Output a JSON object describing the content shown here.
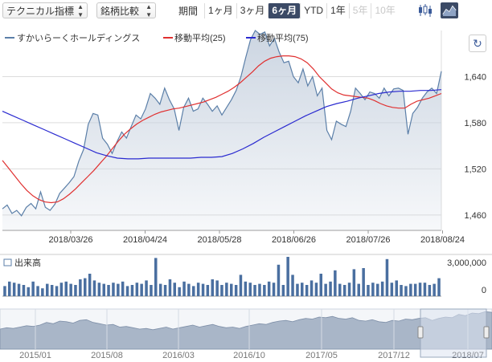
{
  "toolbar": {
    "indicator_label": "テクニカル指標",
    "compare_label": "銘柄比較",
    "period_label": "期間",
    "periods": [
      "1ヶ月",
      "3ヶ月",
      "6ヶ月",
      "YTD",
      "1年",
      "5年",
      "10年"
    ],
    "active_period": "6ヶ月",
    "disabled_periods": [
      "5年",
      "10年"
    ],
    "icons": [
      "candlestick-chart-icon",
      "area-chart-icon"
    ],
    "arrows": "⬆⬇"
  },
  "legend": {
    "company": "すかいらーくホールディングス",
    "ma25": "移動平均(25)",
    "ma75": "移動平均(75)"
  },
  "refresh_icon": "↻",
  "colors": {
    "price_line": "#5b7fa8",
    "price_fill": "#c9d3e0",
    "ma25": "#e03030",
    "ma75": "#2a2ad0",
    "volume": "#4a6fa0",
    "nav_fill": "#a9b6c8"
  },
  "chart_data": [
    {
      "type": "area",
      "title": "",
      "x_tick_labels": [
        "2018/03/26",
        "2018/04/24",
        "2018/05/28",
        "2018/06/26",
        "2018/07/26",
        "2018/08/24"
      ],
      "y_tick_labels": [
        "1,640",
        "1,580",
        "1,520",
        "1,460"
      ],
      "ylim": [
        1440,
        1700
      ],
      "grid": true,
      "series": [
        {
          "name": "すかいらーくホールディングス",
          "values": [
            1468,
            1473,
            1462,
            1466,
            1459,
            1470,
            1475,
            1468,
            1490,
            1470,
            1466,
            1474,
            1488,
            1495,
            1502,
            1510,
            1530,
            1545,
            1578,
            1592,
            1590,
            1560,
            1552,
            1540,
            1555,
            1568,
            1560,
            1575,
            1590,
            1585,
            1598,
            1618,
            1612,
            1604,
            1625,
            1610,
            1598,
            1570,
            1600,
            1612,
            1595,
            1598,
            1612,
            1604,
            1595,
            1602,
            1590,
            1600,
            1610,
            1622,
            1640,
            1665,
            1688,
            1700,
            1695,
            1698,
            1680,
            1690,
            1672,
            1658,
            1660,
            1640,
            1632,
            1650,
            1628,
            1640,
            1615,
            1625,
            1570,
            1558,
            1582,
            1578,
            1575,
            1595,
            1625,
            1618,
            1610,
            1620,
            1618,
            1612,
            1625,
            1615,
            1624,
            1625,
            1622,
            1565,
            1592,
            1600,
            1612,
            1620,
            1625,
            1618,
            1647
          ]
        },
        {
          "name": "移動平均(25)",
          "values": [
            1531,
            1521,
            1511,
            1501,
            1492,
            1485,
            1480,
            1477,
            1476,
            1477,
            1481,
            1487,
            1494,
            1502,
            1510,
            1518,
            1527,
            1536,
            1546,
            1556,
            1565,
            1572,
            1578,
            1583,
            1587,
            1591,
            1594,
            1596,
            1598,
            1599,
            1601,
            1603,
            1605,
            1607,
            1610,
            1613,
            1617,
            1621,
            1626,
            1632,
            1639,
            1646,
            1654,
            1660,
            1664,
            1666,
            1667,
            1667,
            1666,
            1663,
            1658,
            1650,
            1640,
            1632,
            1624,
            1619,
            1616,
            1615,
            1614,
            1613,
            1612,
            1609,
            1605,
            1602,
            1600,
            1599,
            1599,
            1604,
            1608,
            1610,
            1612,
            1615,
            1618
          ]
        },
        {
          "name": "移動平均(75)",
          "values": [
            1595,
            1589,
            1583,
            1577,
            1571,
            1565,
            1559,
            1553,
            1547,
            1541,
            1537,
            1534,
            1533,
            1533,
            1534,
            1534,
            1534,
            1534,
            1534,
            1535,
            1535,
            1536,
            1540,
            1546,
            1553,
            1561,
            1568,
            1575,
            1582,
            1589,
            1595,
            1601,
            1605,
            1608,
            1612,
            1615,
            1618,
            1620,
            1621,
            1621,
            1622,
            1622,
            1623
          ]
        }
      ]
    },
    {
      "type": "bar",
      "title": "出来高",
      "y_tick_labels": [
        "3,000,000",
        "0"
      ],
      "ylim": [
        0,
        3500000
      ],
      "values": [
        900000,
        1300000,
        1200000,
        1100000,
        1000000,
        800000,
        1300000,
        900000,
        700000,
        1100000,
        1000000,
        900000,
        1200000,
        1300000,
        1100000,
        1000000,
        1500000,
        1600000,
        2000000,
        1400000,
        1200000,
        1100000,
        1000000,
        1200000,
        1100000,
        1300000,
        900000,
        1000000,
        1200000,
        1100000,
        1400000,
        1000000,
        3400000,
        1100000,
        1000000,
        1500000,
        1200000,
        800000,
        1300000,
        1100000,
        900000,
        1200000,
        1100000,
        1000000,
        1500000,
        1400000,
        1000000,
        1200000,
        1100000,
        1000000,
        1900000,
        1300000,
        1200000,
        1000000,
        1100000,
        1000000,
        1300000,
        1200000,
        2800000,
        1000000,
        3500000,
        1900000,
        1100000,
        1200000,
        1000000,
        1400000,
        1200000,
        2000000,
        1100000,
        1300000,
        2300000,
        1100000,
        1000000,
        1200000,
        2400000,
        1100000,
        2500000,
        1000000,
        1200000,
        1100000,
        1300000,
        3300000,
        1200000,
        1400000,
        1000000,
        900000,
        1100000,
        1100000,
        1200000,
        1200000,
        1000000,
        1100000,
        1600000
      ]
    },
    {
      "type": "area",
      "title": "",
      "x_tick_labels": [
        "2015/01",
        "2015/08",
        "2016/03",
        "2016/10",
        "2017/05",
        "2017/12",
        "2018/07"
      ],
      "values": [
        30,
        32,
        31,
        33,
        35,
        34,
        36,
        40,
        38,
        42,
        41,
        39,
        43,
        44,
        40,
        38,
        36,
        37,
        33,
        34,
        32,
        30,
        31,
        29,
        31,
        33,
        30,
        32,
        34,
        36,
        33,
        35,
        37,
        34,
        32,
        33,
        31,
        34,
        36,
        38,
        37,
        40,
        42,
        43,
        41,
        44,
        46,
        45,
        48,
        47,
        49,
        46,
        45,
        47,
        43,
        42,
        44,
        41,
        40,
        43,
        42,
        45,
        44,
        46,
        47,
        43,
        46,
        48,
        47,
        52,
        50,
        54,
        53,
        56,
        55
      ]
    }
  ]
}
